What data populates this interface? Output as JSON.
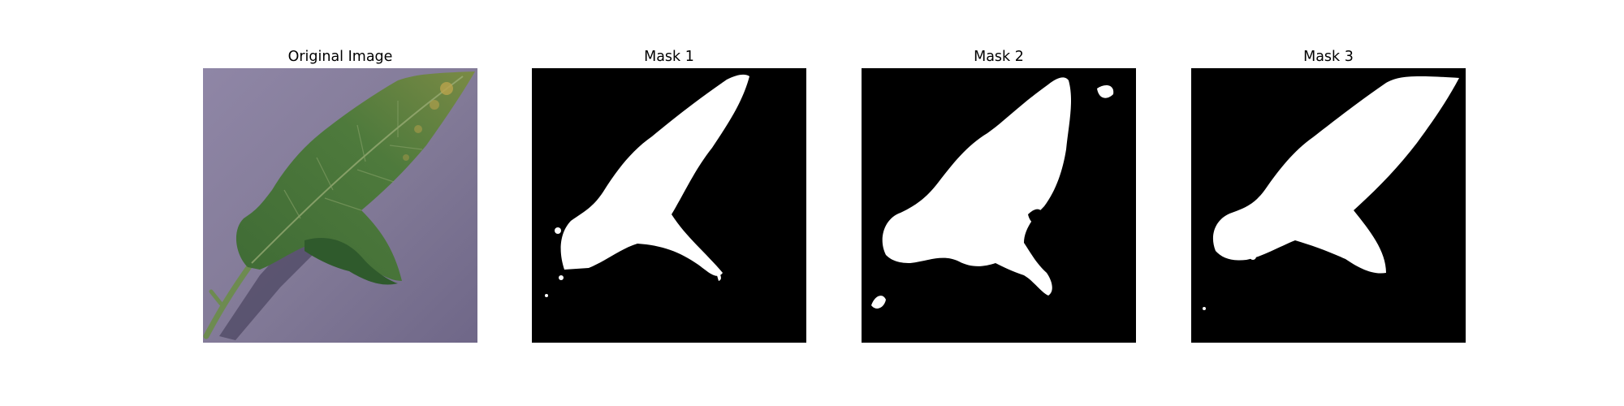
{
  "figure": {
    "panels": [
      {
        "title": "Original Image",
        "kind": "photo",
        "subject": "leaf-photo"
      },
      {
        "title": "Mask 1",
        "kind": "binary-mask"
      },
      {
        "title": "Mask 2",
        "kind": "binary-mask"
      },
      {
        "title": "Mask 3",
        "kind": "binary-mask"
      }
    ]
  },
  "colors": {
    "background": "#ffffff",
    "mask_background": "#000000",
    "mask_foreground": "#ffffff",
    "photo_surface": "#8a829e",
    "leaf_dark": "#2f5a2c",
    "leaf_mid": "#4f7a3f",
    "leaf_spots": "#b9a24c",
    "stem": "#6b8a4e"
  }
}
